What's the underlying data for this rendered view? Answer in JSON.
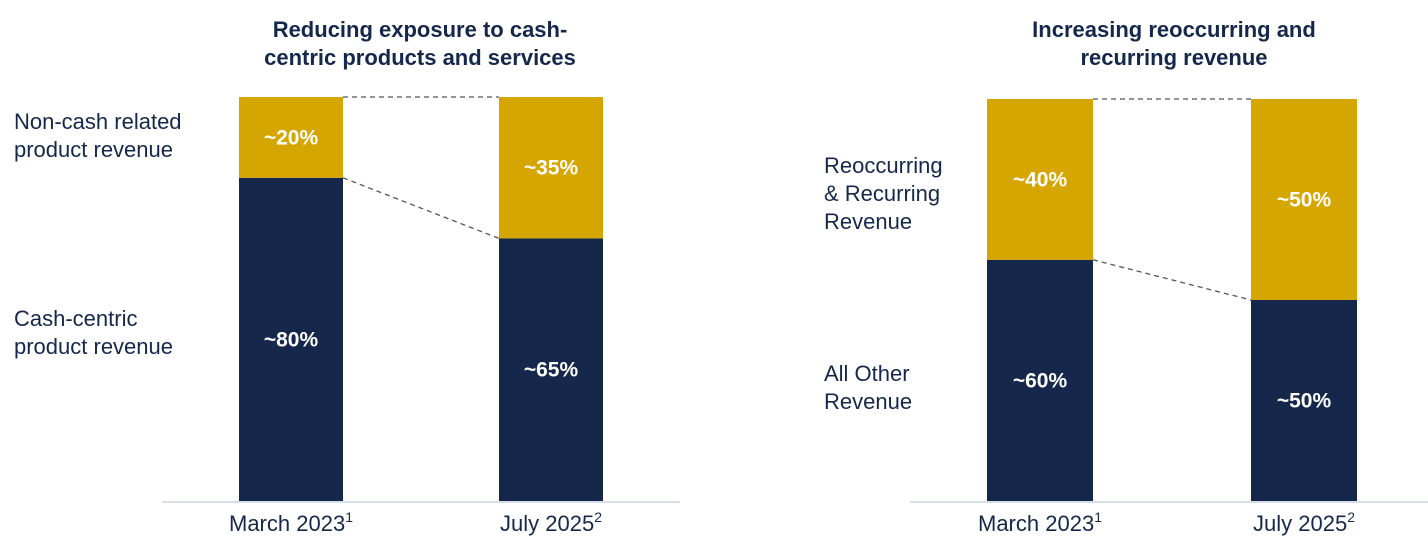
{
  "colors": {
    "navy": "#15284b",
    "gold": "#d6a600",
    "axis": "#c8d3df",
    "guide": "#555555"
  },
  "chart_data": [
    {
      "type": "bar",
      "stacked": true,
      "title": "Reducing exposure to cash-centric products and services",
      "title_lines": [
        "Reducing exposure to cash-",
        "centric products and services"
      ],
      "categories": [
        "March 2023",
        "July 2025"
      ],
      "category_footnotes": [
        "1",
        "2"
      ],
      "ylim": [
        0,
        100
      ],
      "series": [
        {
          "name": "Cash-centric product revenue",
          "values": [
            80,
            65
          ],
          "labels": [
            "~80%",
            "~65%"
          ],
          "color": "#15284b"
        },
        {
          "name": "Non-cash related product revenue",
          "values": [
            20,
            35
          ],
          "labels": [
            "~20%",
            "~35%"
          ],
          "color": "#d6a600"
        }
      ],
      "legend_labels": {
        "top": "Non-cash related\nproduct revenue",
        "bottom": "Cash-centric\nproduct revenue"
      }
    },
    {
      "type": "bar",
      "stacked": true,
      "title": "Increasing reoccurring and recurring revenue",
      "title_lines": [
        "Increasing reoccurring and",
        "recurring revenue"
      ],
      "categories": [
        "March 2023",
        "July 2025"
      ],
      "category_footnotes": [
        "1",
        "2"
      ],
      "ylim": [
        0,
        100
      ],
      "series": [
        {
          "name": "All Other Revenue",
          "values": [
            60,
            50
          ],
          "labels": [
            "~60%",
            "~50%"
          ],
          "color": "#15284b"
        },
        {
          "name": "Reoccurring & Recurring Revenue",
          "values": [
            40,
            50
          ],
          "labels": [
            "~40%",
            "~50%"
          ],
          "color": "#d6a600"
        }
      ],
      "legend_labels": {
        "top": "Reoccurring\n& Recurring\nRevenue",
        "bottom": "All Other\nRevenue"
      }
    }
  ]
}
